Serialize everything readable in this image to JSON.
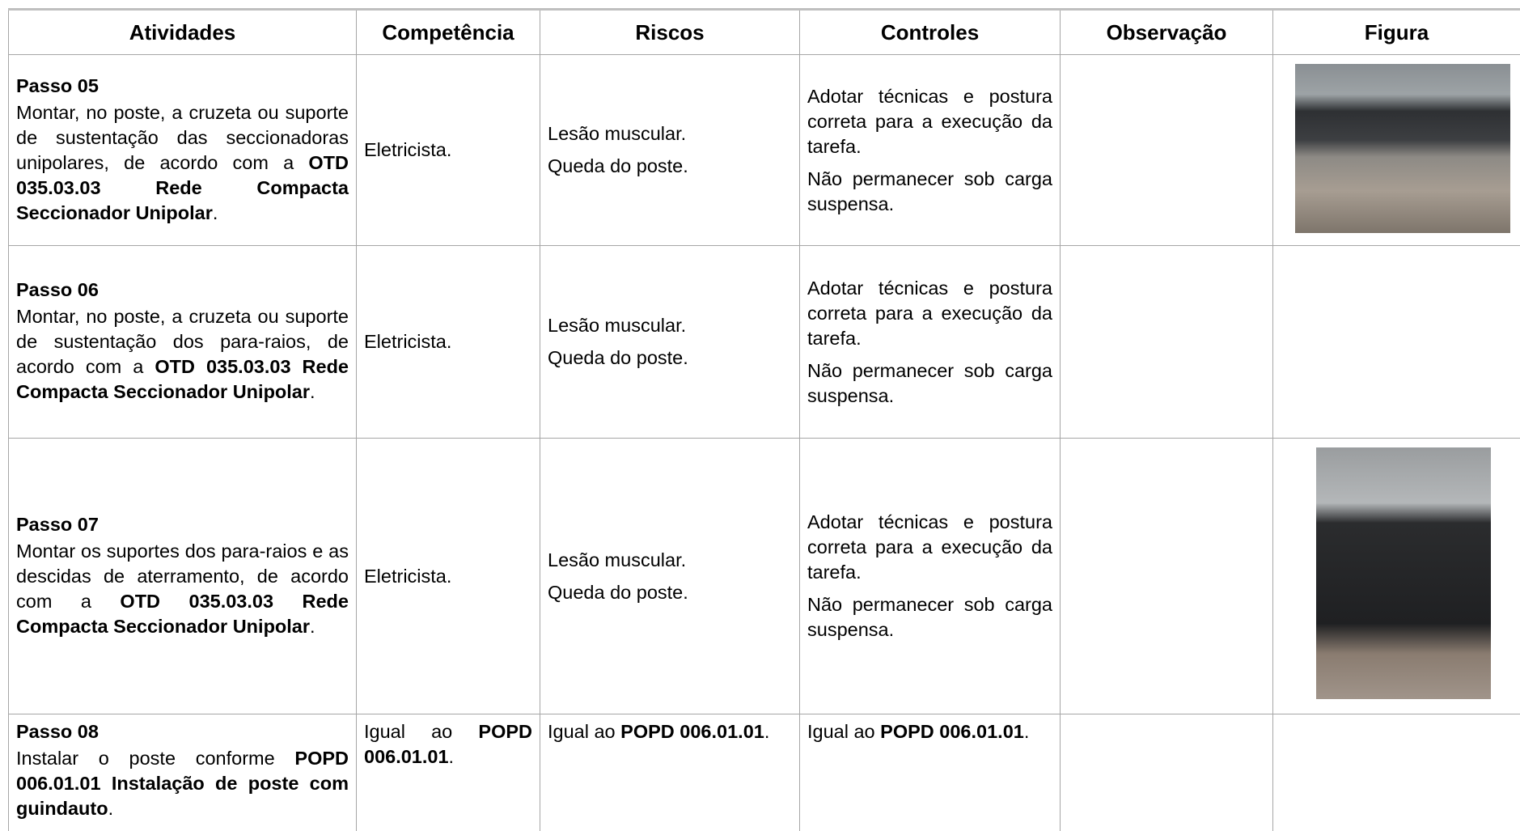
{
  "header": [
    "Atividades",
    "Competência",
    "Riscos",
    "Controles",
    "Observação",
    "Figura"
  ],
  "rows": [
    [
      [
        [
          {
            "text": "Passo 05",
            "bold": true
          }
        ],
        [
          {
            "text": "Montar, no poste, a cruzeta ou suporte de sustentação das seccionadoras unipolares, de acordo com a "
          },
          {
            "text": "OTD 035.03.03 Rede Compacta Seccionador Unipolar",
            "bold": true
          },
          {
            "text": "."
          }
        ]
      ],
      [
        [
          {
            "text": "Eletricista."
          }
        ]
      ],
      [
        [
          {
            "text": "Lesão muscular."
          }
        ],
        [
          {
            "text": "Queda do poste."
          }
        ]
      ],
      [
        [
          {
            "text": "Adotar técnicas e postura correta para a execução da tarefa."
          }
        ],
        [
          {
            "text": "Não permanecer sob carga suspensa."
          }
        ]
      ],
      [],
      []
    ],
    [
      [
        [
          {
            "text": "Passo 06",
            "bold": true
          }
        ],
        [
          {
            "text": "Montar, no poste, a cruzeta ou suporte de sustentação dos para-raios, de acordo com a "
          },
          {
            "text": "OTD 035.03.03 Rede Compacta Seccionador Unipolar",
            "bold": true
          },
          {
            "text": "."
          }
        ]
      ],
      [
        [
          {
            "text": "Eletricista."
          }
        ]
      ],
      [
        [
          {
            "text": "Lesão muscular."
          }
        ],
        [
          {
            "text": "Queda do poste."
          }
        ]
      ],
      [
        [
          {
            "text": "Adotar técnicas e postura correta para a execução da tarefa."
          }
        ],
        [
          {
            "text": "Não permanecer sob carga suspensa."
          }
        ]
      ],
      [],
      []
    ],
    [
      [
        [
          {
            "text": "Passo 07",
            "bold": true
          }
        ],
        [
          {
            "text": "Montar os suportes dos para-raios e as descidas de aterramento, de acordo com a "
          },
          {
            "text": "OTD 035.03.03 Rede Compacta Seccionador Unipolar",
            "bold": true
          },
          {
            "text": "."
          }
        ]
      ],
      [
        [
          {
            "text": "Eletricista."
          }
        ]
      ],
      [
        [
          {
            "text": "Lesão muscular."
          }
        ],
        [
          {
            "text": "Queda do poste."
          }
        ]
      ],
      [
        [
          {
            "text": "Adotar técnicas e postura correta para a execução da tarefa."
          }
        ],
        [
          {
            "text": "Não permanecer sob carga suspensa."
          }
        ]
      ],
      [],
      []
    ],
    [
      [
        [
          {
            "text": "Passo 08",
            "bold": true
          }
        ],
        [
          {
            "text": "Instalar o poste conforme "
          },
          {
            "text": "POPD 006.01.01 Instalação de poste com guindauto",
            "bold": true
          },
          {
            "text": "."
          }
        ]
      ],
      [
        [
          {
            "text": "Igual ao "
          },
          {
            "text": "POPD 006.01.01",
            "bold": true
          },
          {
            "text": "."
          }
        ]
      ],
      [
        [
          {
            "text": "Igual ao "
          },
          {
            "text": "POPD 006.01.01",
            "bold": true
          },
          {
            "text": "."
          }
        ]
      ],
      [
        [
          {
            "text": "Igual ao "
          },
          {
            "text": "POPD 006.01.01",
            "bold": true
          },
          {
            "text": "."
          }
        ]
      ],
      [],
      []
    ]
  ]
}
